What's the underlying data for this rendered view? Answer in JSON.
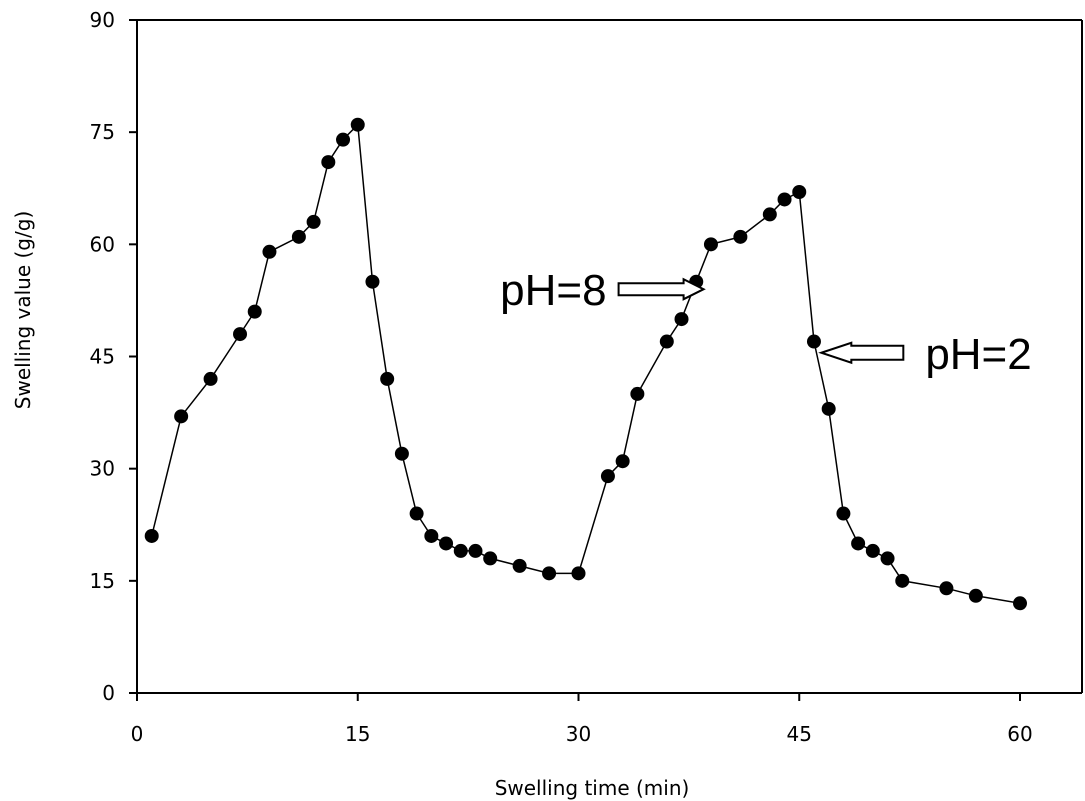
{
  "chart_data": {
    "type": "scatter",
    "title": "",
    "xlabel": "Swelling time (min)",
    "ylabel": "Swelling value (g/g)",
    "xlim": [
      0,
      64
    ],
    "ylim": [
      0,
      90
    ],
    "xticks": [
      "0",
      "15",
      "30",
      "45",
      "60"
    ],
    "yticks": [
      "0",
      "15",
      "30",
      "45",
      "60",
      "75",
      "90"
    ],
    "grid": false,
    "legend": "none",
    "series": [
      {
        "x": [
          1,
          3,
          5,
          7,
          8,
          9,
          11,
          12,
          13,
          14,
          15,
          16,
          17,
          18,
          19,
          20,
          21,
          22,
          23,
          24,
          26,
          28,
          30,
          32,
          33,
          34,
          36,
          37,
          38,
          39,
          41,
          43,
          44,
          45,
          46,
          47,
          48,
          49,
          50,
          51,
          52,
          55,
          57,
          60
        ],
        "y": [
          21,
          37,
          42,
          48,
          51,
          59,
          61,
          63,
          71,
          74,
          76,
          55,
          42,
          32,
          24,
          21,
          20,
          19,
          19,
          18,
          17,
          16,
          16,
          29,
          31,
          40,
          47,
          50,
          55,
          60,
          61,
          64,
          66,
          67,
          47,
          38,
          24,
          20,
          19,
          18,
          15,
          14,
          13,
          12
        ]
      }
    ],
    "annotations": [
      {
        "text": "pH=8",
        "arrow": "right",
        "x": 38.5,
        "y": 54
      },
      {
        "text": "pH=2",
        "arrow": "left",
        "x": 46.5,
        "y": 45.5
      }
    ],
    "colors": {
      "line": "#000000",
      "marker": "#000000"
    }
  }
}
